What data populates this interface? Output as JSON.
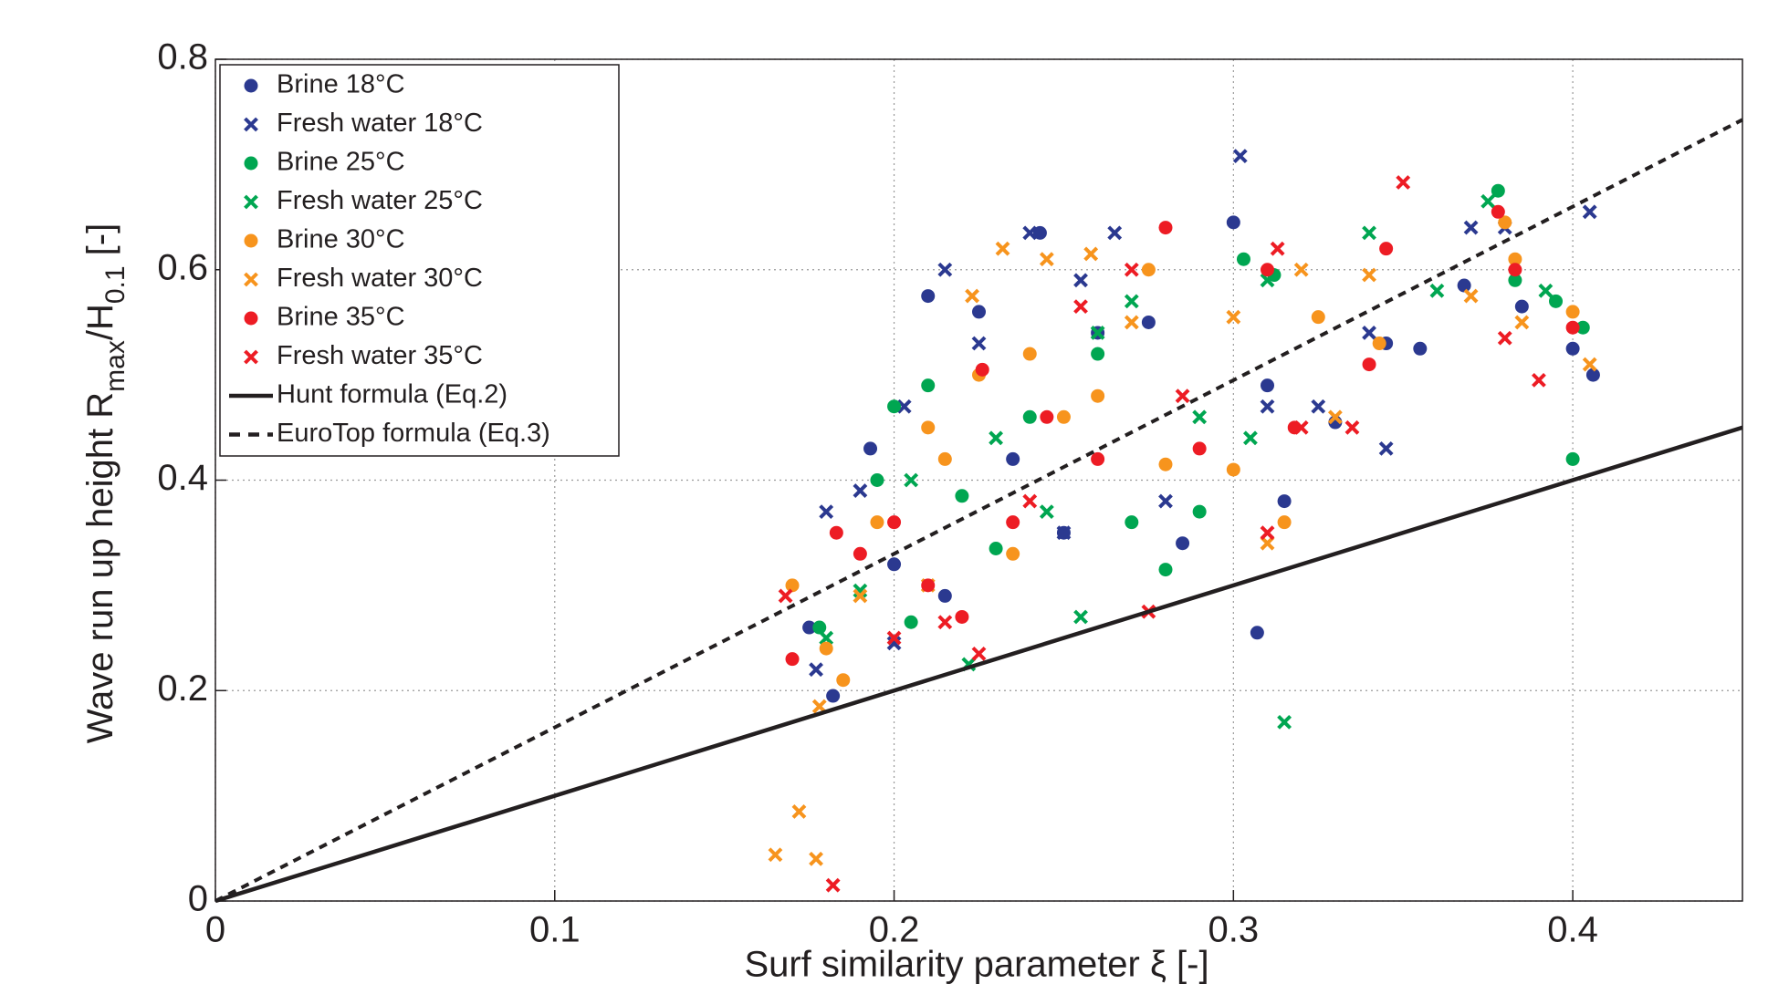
{
  "chart_data": {
    "type": "scatter",
    "xlabel": "Surf similarity parameter ξ [-]",
    "ylabel": [
      {
        "text": "Wave run up height R",
        "sub": false
      },
      {
        "text": "max",
        "sub": true
      },
      {
        "text": "/H",
        "sub": false
      },
      {
        "text": "0.1",
        "sub": true
      },
      {
        "text": " [-]",
        "sub": false
      }
    ],
    "xlim": [
      0,
      0.45
    ],
    "ylim": [
      0,
      0.8
    ],
    "xticks": [
      0,
      0.1,
      0.2,
      0.3,
      0.4
    ],
    "yticks": [
      0,
      0.2,
      0.4,
      0.6,
      0.8
    ],
    "grid": true,
    "legend": "upper left",
    "series": [
      {
        "name": "Brine 18°C",
        "color": "#2b3990",
        "marker": "o",
        "x": [
          0.175,
          0.182,
          0.193,
          0.2,
          0.21,
          0.215,
          0.225,
          0.235,
          0.243,
          0.25,
          0.26,
          0.275,
          0.285,
          0.3,
          0.307,
          0.31,
          0.315,
          0.33,
          0.345,
          0.355,
          0.368,
          0.385,
          0.4,
          0.406
        ],
        "values": [
          0.26,
          0.195,
          0.43,
          0.32,
          0.575,
          0.29,
          0.56,
          0.42,
          0.635,
          0.35,
          0.54,
          0.55,
          0.34,
          0.645,
          0.255,
          0.49,
          0.38,
          0.455,
          0.53,
          0.525,
          0.585,
          0.565,
          0.525,
          0.5
        ]
      },
      {
        "name": "Fresh water 18°C",
        "color": "#2b3990",
        "marker": "x",
        "x": [
          0.177,
          0.18,
          0.19,
          0.2,
          0.203,
          0.215,
          0.225,
          0.24,
          0.25,
          0.265,
          0.28,
          0.302,
          0.31,
          0.325,
          0.34,
          0.345,
          0.37,
          0.38,
          0.405,
          0.255
        ],
        "values": [
          0.22,
          0.37,
          0.39,
          0.245,
          0.47,
          0.6,
          0.53,
          0.635,
          0.35,
          0.635,
          0.38,
          0.708,
          0.47,
          0.47,
          0.54,
          0.43,
          0.64,
          0.64,
          0.655,
          0.59
        ]
      },
      {
        "name": "Brine 25°C",
        "color": "#00a651",
        "marker": "o",
        "x": [
          0.178,
          0.195,
          0.2,
          0.205,
          0.21,
          0.22,
          0.23,
          0.24,
          0.26,
          0.27,
          0.28,
          0.29,
          0.303,
          0.312,
          0.378,
          0.383,
          0.395,
          0.4,
          0.403
        ],
        "values": [
          0.26,
          0.4,
          0.47,
          0.265,
          0.49,
          0.385,
          0.335,
          0.46,
          0.52,
          0.36,
          0.315,
          0.37,
          0.61,
          0.595,
          0.675,
          0.59,
          0.57,
          0.42,
          0.545
        ]
      },
      {
        "name": "Fresh water 25°C",
        "color": "#00a651",
        "marker": "x",
        "x": [
          0.18,
          0.19,
          0.205,
          0.222,
          0.23,
          0.245,
          0.255,
          0.26,
          0.27,
          0.29,
          0.305,
          0.315,
          0.34,
          0.36,
          0.375,
          0.392,
          0.31
        ],
        "values": [
          0.25,
          0.295,
          0.4,
          0.225,
          0.44,
          0.37,
          0.27,
          0.54,
          0.57,
          0.46,
          0.44,
          0.17,
          0.635,
          0.58,
          0.665,
          0.58,
          0.59
        ]
      },
      {
        "name": "Brine 30°C",
        "color": "#f7941d",
        "marker": "o",
        "x": [
          0.17,
          0.18,
          0.185,
          0.195,
          0.21,
          0.215,
          0.225,
          0.235,
          0.24,
          0.25,
          0.26,
          0.275,
          0.28,
          0.3,
          0.315,
          0.325,
          0.343,
          0.38,
          0.383,
          0.4
        ],
        "values": [
          0.3,
          0.24,
          0.21,
          0.36,
          0.45,
          0.42,
          0.5,
          0.33,
          0.52,
          0.46,
          0.48,
          0.6,
          0.415,
          0.41,
          0.36,
          0.555,
          0.53,
          0.645,
          0.61,
          0.56
        ]
      },
      {
        "name": "Fresh water 30°C",
        "color": "#f7941d",
        "marker": "x",
        "x": [
          0.165,
          0.172,
          0.177,
          0.178,
          0.19,
          0.21,
          0.223,
          0.232,
          0.245,
          0.258,
          0.27,
          0.3,
          0.31,
          0.32,
          0.33,
          0.34,
          0.37,
          0.385,
          0.405
        ],
        "values": [
          0.044,
          0.085,
          0.04,
          0.185,
          0.29,
          0.3,
          0.575,
          0.62,
          0.61,
          0.615,
          0.55,
          0.555,
          0.34,
          0.6,
          0.46,
          0.595,
          0.575,
          0.55,
          0.51
        ]
      },
      {
        "name": "Brine 35°C",
        "color": "#ed1c24",
        "marker": "o",
        "x": [
          0.17,
          0.183,
          0.19,
          0.2,
          0.21,
          0.22,
          0.226,
          0.235,
          0.245,
          0.26,
          0.28,
          0.29,
          0.31,
          0.318,
          0.34,
          0.345,
          0.378,
          0.383,
          0.4
        ],
        "values": [
          0.23,
          0.35,
          0.33,
          0.36,
          0.3,
          0.27,
          0.505,
          0.36,
          0.46,
          0.42,
          0.64,
          0.43,
          0.6,
          0.45,
          0.51,
          0.62,
          0.655,
          0.6,
          0.545
        ]
      },
      {
        "name": "Fresh water 35°C",
        "color": "#ed1c24",
        "marker": "x",
        "x": [
          0.168,
          0.182,
          0.2,
          0.215,
          0.225,
          0.24,
          0.255,
          0.27,
          0.275,
          0.285,
          0.31,
          0.313,
          0.32,
          0.335,
          0.35,
          0.38,
          0.39
        ],
        "values": [
          0.29,
          0.015,
          0.25,
          0.265,
          0.235,
          0.38,
          0.565,
          0.6,
          0.275,
          0.48,
          0.35,
          0.62,
          0.45,
          0.45,
          0.683,
          0.535,
          0.495
        ]
      },
      {
        "name": "Hunt formula (Eq.2)",
        "color": "#231f20",
        "line": "solid",
        "x": [
          0,
          0.45
        ],
        "values": [
          0,
          0.45
        ]
      },
      {
        "name": "EuroTop formula (Eq.3)",
        "color": "#231f20",
        "line": "dashed",
        "x": [
          0,
          0.45
        ],
        "values": [
          0,
          0.7425
        ]
      }
    ]
  }
}
